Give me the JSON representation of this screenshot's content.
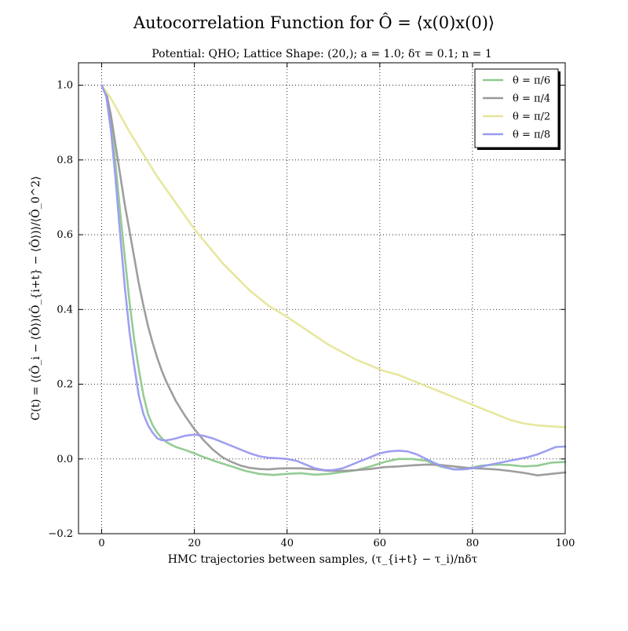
{
  "chart_data": {
    "type": "line",
    "title": "Autocorrelation Function for Ô = ⟨x(0)x(0)⟩",
    "subtitle": "Potential: QHO; Lattice Shape: (20,); a = 1.0; δτ = 0.1; n = 1",
    "xlabel": "HMC trajectories between samples, (τ_{i+t} − τ_i)/nδτ",
    "ylabel": "C(t) = ⟨(Ô_i − ⟨Ô⟩)(Ô_{i+t} − ⟨Ô⟩)⟩/⟨Ô_0^2⟩",
    "xlim": [
      -5,
      100
    ],
    "ylim": [
      -0.2,
      1.06
    ],
    "xticks": [
      0,
      20,
      40,
      60,
      80,
      100
    ],
    "xtick_labels": [
      "0",
      "20",
      "40",
      "60",
      "80",
      "100"
    ],
    "yticks": [
      -0.2,
      0.0,
      0.2,
      0.4,
      0.6,
      0.8,
      1.0
    ],
    "ytick_labels": [
      "−0.2",
      "0.0",
      "0.2",
      "0.4",
      "0.6",
      "0.8",
      "1.0"
    ],
    "grid": true,
    "grid_style": "dotted",
    "legend_placement": "top-right",
    "series": [
      {
        "name": "θ = π/6",
        "color": "#8ec98e",
        "x": [
          0,
          1,
          2,
          3,
          4,
          5,
          6,
          7,
          8,
          9,
          10,
          11,
          12,
          13,
          14,
          15,
          16,
          18,
          20,
          22,
          25,
          28,
          31,
          34,
          37,
          40,
          43,
          46,
          49,
          52,
          55,
          58,
          61,
          64,
          67,
          70,
          73,
          76,
          79,
          82,
          85,
          88,
          91,
          94,
          97,
          100
        ],
        "y": [
          1.0,
          0.98,
          0.9,
          0.79,
          0.66,
          0.54,
          0.42,
          0.32,
          0.24,
          0.17,
          0.12,
          0.09,
          0.07,
          0.055,
          0.045,
          0.038,
          0.032,
          0.024,
          0.015,
          0.005,
          -0.008,
          -0.02,
          -0.032,
          -0.04,
          -0.043,
          -0.04,
          -0.038,
          -0.042,
          -0.04,
          -0.035,
          -0.03,
          -0.02,
          -0.008,
          0.0,
          0.0,
          -0.005,
          -0.02,
          -0.028,
          -0.025,
          -0.018,
          -0.015,
          -0.016,
          -0.02,
          -0.018,
          -0.01,
          -0.008
        ]
      },
      {
        "name": "θ = π/4",
        "color": "#999999",
        "x": [
          0,
          1,
          2,
          3,
          4,
          5,
          6,
          7,
          8,
          9,
          10,
          11,
          12,
          13,
          14,
          15,
          16,
          18,
          20,
          22,
          24,
          26,
          28,
          30,
          32,
          34,
          36,
          38,
          40,
          43,
          46,
          49,
          52,
          55,
          58,
          61,
          64,
          67,
          70,
          73,
          76,
          79,
          82,
          85,
          88,
          91,
          94,
          97,
          100
        ],
        "y": [
          1.0,
          0.98,
          0.92,
          0.84,
          0.76,
          0.68,
          0.61,
          0.54,
          0.47,
          0.41,
          0.355,
          0.31,
          0.27,
          0.235,
          0.205,
          0.18,
          0.155,
          0.115,
          0.08,
          0.05,
          0.025,
          0.005,
          -0.008,
          -0.018,
          -0.024,
          -0.027,
          -0.028,
          -0.026,
          -0.025,
          -0.025,
          -0.028,
          -0.032,
          -0.032,
          -0.03,
          -0.027,
          -0.022,
          -0.02,
          -0.017,
          -0.015,
          -0.016,
          -0.02,
          -0.024,
          -0.026,
          -0.028,
          -0.032,
          -0.037,
          -0.044,
          -0.04,
          -0.036
        ]
      },
      {
        "name": "θ = π/2",
        "color": "#e6e69a",
        "x": [
          0,
          2,
          4,
          6,
          8,
          10,
          12,
          14,
          16,
          18,
          20,
          22,
          24,
          26,
          28,
          30,
          32,
          34,
          36,
          38,
          40,
          43,
          46,
          49,
          52,
          55,
          58,
          61,
          64,
          67,
          70,
          73,
          76,
          79,
          82,
          85,
          88,
          91,
          94,
          97,
          100
        ],
        "y": [
          1.0,
          0.965,
          0.92,
          0.875,
          0.835,
          0.795,
          0.755,
          0.72,
          0.685,
          0.65,
          0.615,
          0.585,
          0.555,
          0.525,
          0.5,
          0.475,
          0.45,
          0.43,
          0.41,
          0.395,
          0.38,
          0.355,
          0.33,
          0.305,
          0.285,
          0.265,
          0.25,
          0.235,
          0.225,
          0.21,
          0.195,
          0.18,
          0.165,
          0.15,
          0.135,
          0.12,
          0.105,
          0.095,
          0.09,
          0.087,
          0.085
        ]
      },
      {
        "name": "θ = π/8",
        "color": "#9a9af0",
        "x": [
          0,
          1,
          2,
          3,
          4,
          5,
          6,
          7,
          8,
          9,
          10,
          11,
          12,
          13,
          14,
          15,
          16,
          18,
          20,
          22,
          24,
          26,
          28,
          30,
          32,
          34,
          36,
          38,
          40,
          42,
          44,
          46,
          48,
          50,
          52,
          54,
          56,
          58,
          60,
          62,
          64,
          66,
          68,
          70,
          72,
          74,
          76,
          78,
          80,
          82,
          84,
          86,
          88,
          90,
          92,
          94,
          96,
          98,
          100
        ],
        "y": [
          1.0,
          0.97,
          0.88,
          0.75,
          0.6,
          0.46,
          0.34,
          0.25,
          0.17,
          0.12,
          0.09,
          0.07,
          0.055,
          0.05,
          0.05,
          0.052,
          0.055,
          0.062,
          0.065,
          0.062,
          0.055,
          0.045,
          0.035,
          0.025,
          0.015,
          0.007,
          0.003,
          0.002,
          0.0,
          -0.005,
          -0.015,
          -0.025,
          -0.03,
          -0.03,
          -0.025,
          -0.015,
          -0.005,
          0.005,
          0.015,
          0.02,
          0.022,
          0.02,
          0.012,
          0.0,
          -0.012,
          -0.022,
          -0.028,
          -0.028,
          -0.025,
          -0.02,
          -0.015,
          -0.01,
          -0.005,
          0.0,
          0.005,
          0.012,
          0.022,
          0.032,
          0.033
        ]
      }
    ]
  }
}
